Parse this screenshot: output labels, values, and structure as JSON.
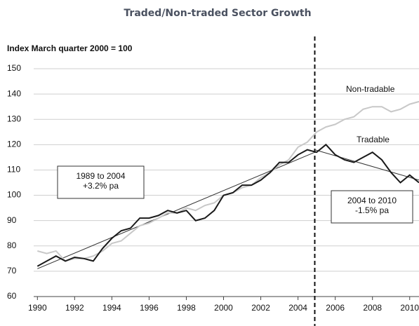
{
  "chart_data": {
    "type": "line",
    "title": "Traded/Non-traded Sector Growth",
    "y_label": "Index March quarter 2000 = 100",
    "x": [
      1990,
      1990.5,
      1991,
      1991.5,
      1992,
      1992.5,
      1993,
      1993.5,
      1994,
      1994.5,
      1995,
      1995.5,
      1996,
      1996.5,
      1997,
      1997.5,
      1998,
      1998.5,
      1999,
      1999.5,
      2000,
      2000.5,
      2001,
      2001.5,
      2002,
      2002.5,
      2003,
      2003.5,
      2004,
      2004.5,
      2005,
      2005.5,
      2006,
      2006.5,
      2007,
      2007.5,
      2008,
      2008.5,
      2009,
      2009.5,
      2010,
      2010.5
    ],
    "series": [
      {
        "name": "Tradable",
        "color": "#1a1a1a",
        "values": [
          72,
          74,
          76,
          74,
          75.5,
          75,
          74,
          79,
          83,
          86,
          87,
          91,
          91,
          92,
          94,
          93,
          94,
          90,
          91,
          94,
          100,
          101,
          104,
          104,
          106,
          109,
          113,
          113,
          116,
          118,
          117,
          120,
          116,
          114,
          113,
          115,
          117,
          114,
          109,
          105,
          108,
          105
        ]
      },
      {
        "name": "Non-tradable",
        "color": "#c8c8c8",
        "values": [
          78,
          77,
          78,
          74,
          75,
          75,
          76,
          78,
          81,
          82,
          85,
          88,
          89,
          91,
          93,
          93,
          95,
          94,
          96,
          97,
          100,
          101,
          103,
          104,
          107,
          109,
          112,
          114,
          119,
          121,
          125,
          127,
          128,
          130,
          131,
          134,
          135,
          135,
          133,
          134,
          136,
          137
        ]
      }
    ],
    "trends": [
      {
        "x": [
          1990,
          2004.9
        ],
        "values": [
          71,
          117
        ],
        "color": "#333333"
      },
      {
        "x": [
          2004.9,
          2010.5
        ],
        "values": [
          118,
          106
        ],
        "color": "#333333"
      }
    ],
    "annotations": [
      {
        "lines": [
          "1989 to 2004",
          "+3.2% pa"
        ]
      },
      {
        "lines": [
          "2004 to 2010",
          "-1.5% pa"
        ]
      }
    ],
    "vline": 2004.9,
    "xlim": [
      1989.8,
      2010.5
    ],
    "xticks": [
      1990,
      1992,
      1994,
      1996,
      1998,
      2000,
      2002,
      2004,
      2006,
      2008,
      2010
    ],
    "ylim": [
      60,
      150
    ],
    "yticks": [
      60,
      70,
      80,
      90,
      100,
      110,
      120,
      130,
      140,
      150
    ],
    "grid": true
  }
}
